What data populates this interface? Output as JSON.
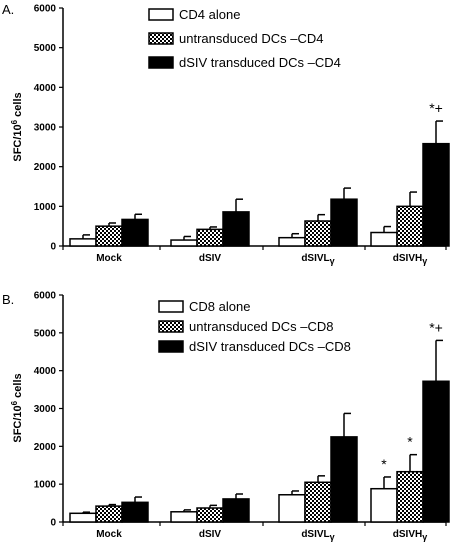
{
  "chart_data": [
    {
      "panel_label": "A.",
      "type": "bar",
      "ylabel_main": "SFC/10",
      "ylabel_sup": "6",
      "ylabel_tail": " cells",
      "ylim": [
        0,
        6000
      ],
      "yticks": [
        "0",
        "1000",
        "2000",
        "3000",
        "4000",
        "5000",
        "6000"
      ],
      "categories": [
        {
          "main": "Mock",
          "sub": ""
        },
        {
          "main": "dSIV",
          "sub": ""
        },
        {
          "main": "dSIVL",
          "sub": "γ"
        },
        {
          "main": "dSIVH",
          "sub": "γ"
        }
      ],
      "series": [
        {
          "name": "CD4 alone",
          "fill": "white",
          "values": [
            180,
            150,
            210,
            340
          ],
          "errors": [
            100,
            90,
            100,
            150
          ]
        },
        {
          "name": "untransduced DCs –CD4",
          "fill": "checker",
          "values": [
            500,
            420,
            630,
            1000
          ],
          "errors": [
            80,
            60,
            160,
            360
          ]
        },
        {
          "name": "dSIV transduced DCs –CD4",
          "fill": "black",
          "values": [
            670,
            860,
            1180,
            2580
          ],
          "errors": [
            130,
            320,
            280,
            570
          ]
        }
      ],
      "annotations": [
        {
          "text": "*+",
          "category": 3,
          "series": 2
        }
      ],
      "legend_position": "top-left"
    },
    {
      "panel_label": "B.",
      "type": "bar",
      "ylabel_main": "SFC/10",
      "ylabel_sup": "6",
      "ylabel_tail": " cells",
      "ylim": [
        0,
        6000
      ],
      "yticks": [
        "0",
        "1000",
        "2000",
        "3000",
        "4000",
        "5000",
        "6000"
      ],
      "categories": [
        {
          "main": "Mock",
          "sub": ""
        },
        {
          "main": "dSIV",
          "sub": ""
        },
        {
          "main": "dSIVL",
          "sub": "γ"
        },
        {
          "main": "dSIVH",
          "sub": "γ"
        }
      ],
      "series": [
        {
          "name": "CD8 alone",
          "fill": "white",
          "values": [
            230,
            270,
            720,
            880
          ],
          "errors": [
            30,
            50,
            100,
            310
          ]
        },
        {
          "name": "untransduced DCs –CD8",
          "fill": "checker",
          "values": [
            420,
            370,
            1050,
            1330
          ],
          "errors": [
            40,
            70,
            170,
            450
          ]
        },
        {
          "name": "dSIV transduced DCs –CD8",
          "fill": "black",
          "values": [
            520,
            610,
            2250,
            3720
          ],
          "errors": [
            140,
            130,
            620,
            1080
          ]
        }
      ],
      "annotations": [
        {
          "text": "*",
          "category": 3,
          "series": 0
        },
        {
          "text": "*",
          "category": 3,
          "series": 1
        },
        {
          "text": "*+",
          "category": 3,
          "series": 2
        }
      ],
      "legend_position": "top-left"
    }
  ]
}
